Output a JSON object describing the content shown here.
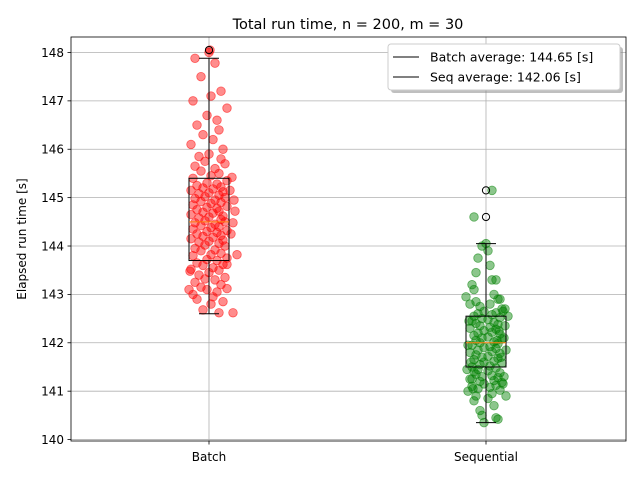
{
  "chart_data": {
    "type": "box",
    "title": "Total run time, n = 200, m = 30",
    "xlabel": "",
    "ylabel": "Elapsed run time [s]",
    "ylim": [
      139.97,
      148.32
    ],
    "yticks": [
      140,
      141,
      142,
      143,
      144,
      145,
      146,
      147,
      148
    ],
    "grid": true,
    "legend_position": "top-right",
    "legend": [
      "Batch average: 144.65 [s]",
      "Seq average: 142.06 [s]"
    ],
    "categories": [
      "Batch",
      "Sequential"
    ],
    "series": [
      {
        "category": "Batch",
        "point_color": "#ff0000",
        "average": 144.65,
        "box": {
          "whisker_low": 142.6,
          "q1": 143.7,
          "median": 144.5,
          "q3": 145.4,
          "whisker_high": 147.88
        },
        "outliers": [
          148.05
        ],
        "jitter_points": [
          142.62,
          142.68,
          142.8,
          142.85,
          142.9,
          142.95,
          143.0,
          143.05,
          143.1,
          143.12,
          143.15,
          143.2,
          143.25,
          143.3,
          143.32,
          143.35,
          143.4,
          143.45,
          143.5,
          143.52,
          143.55,
          143.6,
          143.62,
          143.65,
          143.7,
          143.72,
          143.75,
          143.8,
          143.82,
          143.85,
          143.9,
          143.92,
          143.95,
          144.0,
          144.02,
          144.05,
          144.08,
          144.1,
          144.12,
          144.15,
          144.18,
          144.2,
          144.22,
          144.25,
          144.28,
          144.3,
          144.32,
          144.35,
          144.38,
          144.4,
          144.42,
          144.45,
          144.48,
          144.5,
          144.52,
          144.55,
          144.58,
          144.6,
          144.62,
          144.65,
          144.68,
          144.7,
          144.72,
          144.75,
          144.78,
          144.8,
          144.82,
          144.85,
          144.88,
          144.9,
          144.92,
          144.95,
          144.98,
          145.0,
          145.02,
          145.05,
          145.08,
          145.1,
          145.12,
          145.15,
          145.18,
          145.2,
          145.22,
          145.25,
          145.28,
          145.3,
          145.35,
          145.4,
          145.45,
          145.5,
          145.55,
          145.6,
          145.65,
          145.7,
          145.75,
          145.8,
          145.85,
          145.9,
          146.0,
          146.1,
          146.2,
          146.3,
          146.4,
          146.5,
          146.6,
          146.7,
          146.85,
          147.0,
          147.1,
          147.2,
          147.5,
          147.78,
          147.88,
          148.0,
          148.05,
          143.82,
          143.62,
          142.62,
          144.25,
          144.48,
          144.72,
          144.95,
          145.15,
          145.42,
          143.1,
          143.48
        ],
        "jitter_offsets": [
          0.5,
          -0.3,
          0.1,
          0.7,
          -0.6,
          0.2,
          -0.8,
          0.4,
          -0.1,
          0.9,
          -0.4,
          0.6,
          -0.7,
          0.3,
          -0.2,
          0.8,
          -0.5,
          0.0,
          0.5,
          -0.9,
          0.2,
          -0.3,
          0.7,
          -0.6,
          0.4,
          -0.1,
          0.9,
          -0.8,
          0.1,
          0.6,
          -0.4,
          0.3,
          -0.7,
          0.8,
          -0.2,
          0.5,
          -0.5,
          0.0,
          0.7,
          -0.9,
          0.2,
          -0.3,
          0.6,
          -0.6,
          0.4,
          -0.1,
          0.9,
          -0.8,
          0.1,
          0.5,
          -0.4,
          0.3,
          -0.7,
          0.8,
          -0.2,
          0.6,
          -0.5,
          0.0,
          0.7,
          -0.9,
          0.2,
          -0.3,
          0.5,
          -0.6,
          0.4,
          -0.1,
          0.9,
          -0.8,
          0.1,
          0.6,
          -0.4,
          0.3,
          -0.7,
          0.8,
          -0.2,
          0.5,
          -0.5,
          0.0,
          0.7,
          -0.9,
          0.2,
          -0.3,
          0.6,
          -0.6,
          0.4,
          -0.1,
          0.9,
          -0.8,
          0.1,
          0.5,
          -0.4,
          0.3,
          -0.7,
          0.8,
          -0.2,
          0.6,
          -0.5,
          0.0,
          0.7,
          -0.9,
          0.2,
          -0.3,
          0.5,
          -0.6,
          0.4,
          -0.1,
          0.9,
          -0.8,
          0.1,
          0.6,
          -0.4,
          0.3,
          -0.7,
          0.0,
          0.05,
          1.4,
          0.9,
          1.2,
          1.1,
          1.2,
          1.3,
          1.25,
          1.05,
          1.15,
          -1.0,
          -0.95
        ]
      },
      {
        "category": "Sequential",
        "point_color": "#008000",
        "average": 142.06,
        "box": {
          "whisker_low": 140.35,
          "q1": 141.5,
          "median": 142.0,
          "q3": 142.55,
          "whisker_high": 144.05
        },
        "outliers": [
          145.15,
          144.6
        ],
        "jitter_points": [
          140.35,
          140.42,
          140.45,
          140.5,
          140.6,
          140.7,
          140.8,
          140.85,
          140.9,
          140.95,
          141.0,
          141.02,
          141.05,
          141.08,
          141.1,
          141.12,
          141.15,
          141.18,
          141.2,
          141.22,
          141.25,
          141.28,
          141.3,
          141.32,
          141.35,
          141.38,
          141.4,
          141.42,
          141.45,
          141.48,
          141.5,
          141.52,
          141.55,
          141.58,
          141.6,
          141.62,
          141.65,
          141.68,
          141.7,
          141.72,
          141.75,
          141.78,
          141.8,
          141.82,
          141.85,
          141.88,
          141.9,
          141.92,
          141.95,
          141.98,
          142.0,
          142.02,
          142.05,
          142.08,
          142.1,
          142.12,
          142.15,
          142.18,
          142.2,
          142.22,
          142.25,
          142.28,
          142.3,
          142.32,
          142.35,
          142.38,
          142.4,
          142.42,
          142.45,
          142.48,
          142.5,
          142.52,
          142.55,
          142.58,
          142.6,
          142.62,
          142.65,
          142.7,
          142.75,
          142.8,
          142.85,
          142.9,
          142.95,
          143.0,
          143.1,
          143.2,
          143.3,
          143.45,
          143.6,
          143.75,
          143.9,
          144.0,
          144.05,
          145.15,
          144.6,
          142.55,
          140.9,
          141.3,
          142.8,
          143.3,
          142.1,
          141.7,
          141.95,
          142.25,
          141.45,
          141.15,
          142.7,
          142.45,
          141.85,
          142.05,
          141.6,
          142.35,
          141.25,
          142.65,
          141.05,
          142.9
        ],
        "jitter_offsets": [
          -0.1,
          0.6,
          0.5,
          -0.2,
          -0.3,
          0.4,
          -0.6,
          0.1,
          -0.5,
          0.3,
          -0.9,
          0.7,
          -0.4,
          0.2,
          -0.7,
          0.5,
          -0.1,
          0.8,
          -0.3,
          0.4,
          -0.8,
          0.6,
          -0.2,
          0.3,
          -0.5,
          0.7,
          -0.6,
          0.1,
          -0.4,
          0.5,
          -0.7,
          0.2,
          -0.3,
          0.8,
          -0.1,
          0.4,
          -0.6,
          0.6,
          -0.2,
          0.1,
          -0.5,
          0.7,
          -0.8,
          0.3,
          -0.4,
          0.5,
          -0.1,
          0.2,
          -0.7,
          0.6,
          -0.3,
          0.4,
          -0.5,
          0.8,
          -0.2,
          0.1,
          -0.6,
          0.7,
          -0.4,
          0.3,
          -0.1,
          0.5,
          -0.8,
          0.2,
          -0.3,
          0.6,
          -0.5,
          0.4,
          -0.7,
          0.1,
          -0.2,
          0.7,
          -0.6,
          0.3,
          -0.4,
          0.5,
          -0.1,
          0.8,
          -0.3,
          0.2,
          -0.5,
          0.6,
          -1.0,
          0.4,
          -0.6,
          -0.7,
          0.3,
          -0.5,
          0.2,
          -0.4,
          0.1,
          -0.2,
          0.0,
          0.3,
          -0.6,
          1.1,
          1.0,
          0.9,
          -0.8,
          0.5,
          0.9,
          0.75,
          -0.9,
          0.65,
          -0.95,
          0.85,
          0.95,
          -0.85,
          1.0,
          0.55,
          -0.75,
          0.95,
          -0.7,
          0.85,
          -0.65,
          0.7
        ]
      }
    ]
  }
}
